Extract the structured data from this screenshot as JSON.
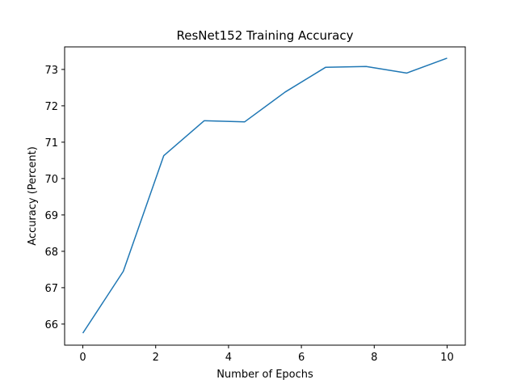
{
  "chart_data": {
    "type": "line",
    "title": "ResNet152 Training Accuracy",
    "xlabel": "Number of Epochs",
    "ylabel": "Accuracy (Percent)",
    "xlim": [
      -0.5,
      10.5
    ],
    "ylim": [
      65.42,
      73.62
    ],
    "xticks": [
      0,
      2,
      4,
      6,
      8,
      10
    ],
    "yticks": [
      66,
      67,
      68,
      69,
      70,
      71,
      72,
      73
    ],
    "grid": false,
    "legend": "none",
    "series": [
      {
        "name": "accuracy",
        "color": "#1f77b4",
        "x": [
          0,
          1.111,
          2.222,
          3.333,
          4.444,
          5.556,
          6.667,
          7.778,
          8.889,
          10
        ],
        "y": [
          65.75,
          67.45,
          70.63,
          71.59,
          71.56,
          72.38,
          73.06,
          73.08,
          72.9,
          73.31
        ]
      }
    ]
  }
}
